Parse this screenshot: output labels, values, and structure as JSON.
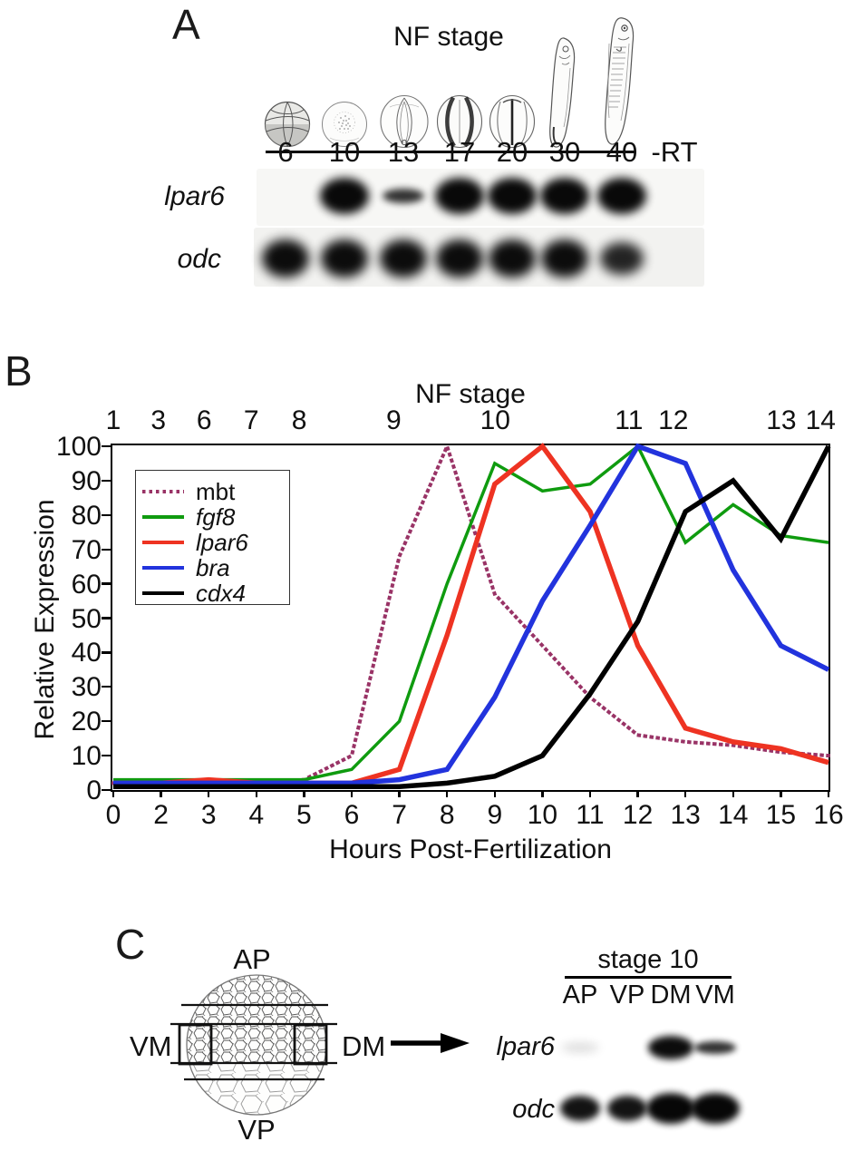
{
  "panel_a": {
    "label": "A",
    "axis_title": "NF stage",
    "lanes": [
      "6",
      "10",
      "13",
      "17",
      "20",
      "30",
      "40",
      "-RT"
    ],
    "rows": [
      {
        "gene": "lpar6",
        "bands": [
          "none",
          "strong",
          "weak",
          "strong",
          "strong",
          "strong",
          "strong",
          "none"
        ]
      },
      {
        "gene": "odc",
        "bands": [
          "strong",
          "strong",
          "strong",
          "strong",
          "strong",
          "strong",
          "medium",
          "none"
        ]
      }
    ]
  },
  "panel_b": {
    "label": "B",
    "chart_data": {
      "type": "line",
      "top_axis_title": "NF stage",
      "xlabel": "Hours Post-Fertilization",
      "ylabel": "Relative Expression",
      "ylim": [
        0,
        100
      ],
      "grid": false,
      "legend_position": "top-left",
      "y_ticks": [
        "0",
        "10",
        "20",
        "30",
        "40",
        "50",
        "60",
        "70",
        "80",
        "90",
        "100"
      ],
      "x_tick_labels": [
        "0",
        "2",
        "3",
        "4",
        "5",
        "6",
        "7",
        "8",
        "9",
        "10",
        "11",
        "12",
        "13",
        "14",
        "15",
        "16"
      ],
      "nf_stage_labels": [
        {
          "label": "1",
          "pos": 0.0
        },
        {
          "label": "3",
          "pos": 0.063
        },
        {
          "label": "6",
          "pos": 0.127
        },
        {
          "label": "7",
          "pos": 0.193
        },
        {
          "label": "8",
          "pos": 0.26
        },
        {
          "label": "9",
          "pos": 0.392
        },
        {
          "label": "10",
          "pos": 0.534
        },
        {
          "label": "11",
          "pos": 0.721
        },
        {
          "label": "12",
          "pos": 0.783
        },
        {
          "label": "13",
          "pos": 0.934
        },
        {
          "label": "14",
          "pos": 0.989
        }
      ],
      "series": [
        {
          "name": "mbt",
          "italic": false,
          "color": "#993366",
          "line_style": "dotted",
          "values": [
            2,
            2,
            2,
            2,
            3,
            10,
            68,
            100,
            57,
            42,
            27,
            16,
            14,
            13,
            11,
            10
          ]
        },
        {
          "name": "fgf8",
          "italic": true,
          "color": "#0f9b0f",
          "line_style": "solid",
          "values": [
            3,
            3,
            3,
            3,
            3,
            6,
            20,
            60,
            95,
            87,
            89,
            100,
            72,
            83,
            74,
            72
          ]
        },
        {
          "name": "lpar6",
          "italic": true,
          "color": "#ee3322",
          "line_style": "solid",
          "values": [
            2,
            2,
            3,
            2,
            2,
            2,
            6,
            45,
            89,
            100,
            81,
            42,
            18,
            14,
            12,
            8
          ]
        },
        {
          "name": "bra",
          "italic": true,
          "color": "#2233dd",
          "line_style": "solid",
          "values": [
            2,
            2,
            2,
            2,
            2,
            2,
            3,
            6,
            27,
            55,
            77,
            100,
            95,
            64,
            42,
            35
          ]
        },
        {
          "name": "cdx4",
          "italic": true,
          "color": "#000000",
          "line_style": "solid",
          "values": [
            1,
            1,
            1,
            1,
            1,
            1,
            1,
            2,
            4,
            10,
            28,
            49,
            81,
            90,
            73,
            100
          ]
        }
      ]
    }
  },
  "panel_c": {
    "label": "C",
    "diagram": {
      "top": "AP",
      "left": "VM",
      "right": "DM",
      "bottom": "VP"
    },
    "gel": {
      "title": "stage 10",
      "lanes": [
        "AP",
        "VP",
        "DM",
        "VM"
      ],
      "rows": [
        {
          "gene": "lpar6",
          "bands": [
            "faint",
            "none",
            "strong",
            "medium"
          ]
        },
        {
          "gene": "odc",
          "bands": [
            "medium",
            "medium",
            "strong",
            "strong"
          ]
        }
      ]
    }
  }
}
